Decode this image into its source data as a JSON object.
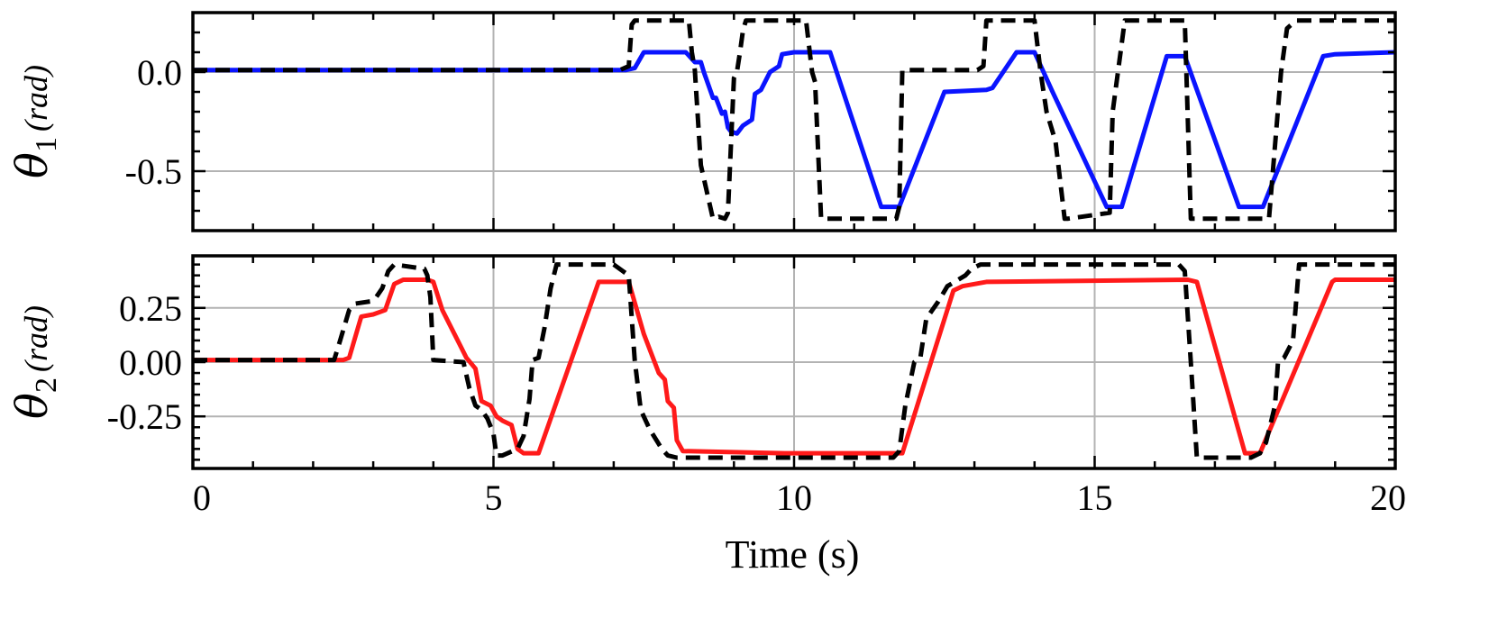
{
  "chart_data": [
    {
      "type": "line",
      "panel": "top",
      "ylabel": {
        "symbol": "θ",
        "subscript": "1",
        "unit": "(rad)"
      },
      "xlim": [
        0,
        20
      ],
      "ylim": [
        -0.8,
        0.3
      ],
      "yticks": [
        0.0,
        -0.5
      ],
      "ytick_labels": [
        "0.0",
        "-0.5"
      ],
      "grid": true,
      "series": [
        {
          "style": "solid",
          "color": "#0a14ff",
          "x": [
            0,
            7.2,
            7.35,
            7.5,
            8.2,
            8.35,
            8.45,
            8.5,
            8.65,
            8.7,
            8.8,
            8.85,
            8.9,
            8.95,
            9.05,
            9.15,
            9.3,
            9.35,
            9.45,
            9.6,
            9.75,
            9.8,
            10.0,
            10.6,
            11.45,
            11.75,
            12.5,
            13.2,
            13.3,
            13.7,
            14.0,
            14.3,
            15.2,
            15.45,
            16.2,
            16.5,
            17.4,
            17.8,
            18.8,
            19.0,
            20.0
          ],
          "y": [
            0.01,
            0.01,
            0.02,
            0.1,
            0.1,
            0.05,
            0.05,
            0.0,
            -0.13,
            -0.13,
            -0.21,
            -0.2,
            -0.28,
            -0.3,
            -0.31,
            -0.27,
            -0.24,
            -0.11,
            -0.09,
            0.0,
            0.03,
            0.09,
            0.1,
            0.1,
            -0.68,
            -0.68,
            -0.1,
            -0.09,
            -0.08,
            0.1,
            0.1,
            -0.1,
            -0.68,
            -0.68,
            0.08,
            0.08,
            -0.68,
            -0.68,
            0.08,
            0.09,
            0.1
          ]
        },
        {
          "style": "dashed",
          "color": "#000000",
          "x": [
            0,
            7.1,
            7.25,
            7.3,
            7.35,
            8.25,
            8.3,
            8.35,
            8.45,
            8.65,
            8.75,
            8.85,
            8.9,
            9.0,
            9.05,
            9.1,
            9.15,
            9.2,
            10.2,
            10.3,
            10.35,
            10.45,
            11.7,
            11.75,
            11.8,
            13.05,
            13.15,
            13.2,
            13.25,
            14.0,
            14.1,
            14.2,
            14.35,
            14.5,
            14.55,
            15.25,
            15.3,
            15.5,
            16.5,
            16.6,
            17.9,
            18.1,
            18.2,
            18.35,
            20.0
          ],
          "y": [
            0.01,
            0.01,
            0.03,
            0.24,
            0.26,
            0.26,
            0.1,
            0.01,
            -0.47,
            -0.74,
            -0.73,
            -0.74,
            -0.71,
            -0.03,
            0.0,
            0.1,
            0.21,
            0.26,
            0.26,
            0.0,
            -0.05,
            -0.74,
            -0.74,
            -0.68,
            0.01,
            0.01,
            0.03,
            0.26,
            0.26,
            0.26,
            0.0,
            -0.2,
            -0.35,
            -0.74,
            -0.74,
            -0.71,
            -0.2,
            0.26,
            0.26,
            -0.74,
            -0.74,
            0.0,
            0.22,
            0.26,
            0.26
          ]
        }
      ]
    },
    {
      "type": "line",
      "panel": "bottom",
      "ylabel": {
        "symbol": "θ",
        "subscript": "2",
        "unit": "(rad)"
      },
      "xlabel": "Time (s)",
      "xlim": [
        0,
        20
      ],
      "ylim": [
        -0.49,
        0.49
      ],
      "xticks": [
        0,
        5,
        10,
        15,
        20
      ],
      "xtick_labels": [
        "0",
        "5",
        "10",
        "15",
        "20"
      ],
      "yticks": [
        0.25,
        0.0,
        -0.25
      ],
      "ytick_labels": [
        "0.25",
        "0.00",
        "-0.25"
      ],
      "grid": true,
      "series": [
        {
          "style": "solid",
          "color": "#ff1a1a",
          "x": [
            0,
            2.5,
            2.6,
            2.8,
            3.0,
            3.2,
            3.35,
            3.5,
            3.9,
            4.0,
            4.15,
            4.55,
            4.7,
            4.8,
            4.95,
            5.05,
            5.15,
            5.3,
            5.4,
            5.5,
            5.6,
            5.75,
            6.75,
            7.25,
            7.5,
            7.75,
            7.85,
            7.9,
            8.0,
            8.05,
            8.15,
            9.85,
            10.2,
            11.8,
            12.65,
            12.8,
            13.0,
            13.2,
            16.55,
            16.7,
            17.5,
            17.75,
            18.95,
            19.0,
            20.0
          ],
          "y": [
            0.01,
            0.01,
            0.02,
            0.21,
            0.22,
            0.24,
            0.36,
            0.38,
            0.38,
            0.37,
            0.24,
            0.02,
            -0.03,
            -0.18,
            -0.2,
            -0.25,
            -0.27,
            -0.29,
            -0.4,
            -0.42,
            -0.42,
            -0.42,
            0.37,
            0.37,
            0.13,
            -0.05,
            -0.08,
            -0.18,
            -0.21,
            -0.36,
            -0.41,
            -0.42,
            -0.42,
            -0.42,
            0.33,
            0.35,
            0.36,
            0.37,
            0.38,
            0.37,
            -0.42,
            -0.42,
            0.37,
            0.38,
            0.38
          ]
        },
        {
          "style": "dashed",
          "color": "#000000",
          "x": [
            0,
            2.35,
            2.45,
            2.6,
            2.7,
            2.95,
            3.05,
            3.15,
            3.25,
            3.35,
            3.85,
            3.9,
            3.95,
            4.0,
            4.5,
            4.6,
            4.7,
            4.8,
            4.9,
            5.0,
            5.05,
            5.15,
            5.4,
            5.5,
            5.6,
            5.65,
            5.75,
            5.85,
            5.95,
            6.05,
            7.0,
            7.15,
            7.25,
            7.35,
            7.45,
            7.6,
            7.8,
            7.9,
            8.05,
            11.65,
            11.75,
            11.85,
            12.0,
            12.1,
            12.2,
            12.4,
            12.55,
            12.85,
            12.95,
            13.1,
            16.4,
            16.5,
            16.6,
            16.7,
            17.6,
            17.75,
            17.85,
            18.0,
            18.05,
            18.15,
            18.3,
            18.4,
            20.0
          ],
          "y": [
            0.01,
            0.01,
            0.1,
            0.24,
            0.27,
            0.28,
            0.3,
            0.34,
            0.42,
            0.45,
            0.43,
            0.4,
            0.3,
            0.01,
            0.0,
            -0.12,
            -0.2,
            -0.22,
            -0.26,
            -0.33,
            -0.43,
            -0.43,
            -0.4,
            -0.34,
            -0.17,
            0.01,
            0.02,
            0.16,
            0.34,
            0.45,
            0.45,
            0.42,
            0.4,
            0.01,
            -0.22,
            -0.31,
            -0.4,
            -0.43,
            -0.44,
            -0.44,
            -0.41,
            -0.2,
            0.0,
            0.02,
            0.2,
            0.28,
            0.35,
            0.4,
            0.43,
            0.45,
            0.45,
            0.42,
            0.0,
            -0.44,
            -0.44,
            -0.42,
            -0.37,
            -0.2,
            0.0,
            0.02,
            0.1,
            0.45,
            0.45
          ]
        }
      ]
    }
  ]
}
